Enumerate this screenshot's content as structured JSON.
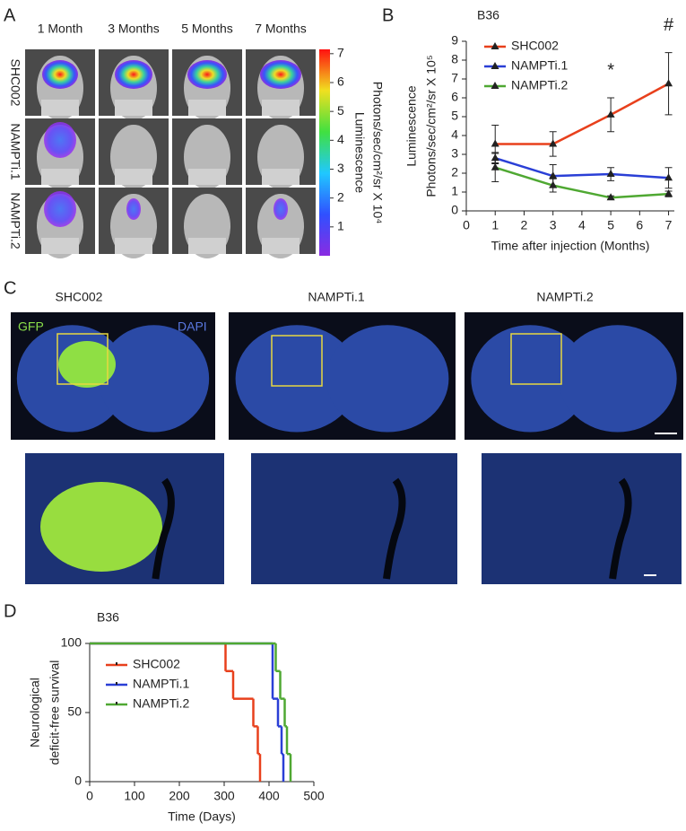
{
  "panel_labels": [
    "A",
    "B",
    "C",
    "D"
  ],
  "panel_a": {
    "columns": [
      "1 Month",
      "3 Months",
      "5 Months",
      "7 Months"
    ],
    "rows": [
      "SHC002",
      "NAMPTi.1",
      "NAMPTi.2"
    ],
    "colorbar": {
      "label": [
        "Luminescence",
        "Photons/sec/cm²/sr X 10⁴"
      ],
      "lim": [
        0,
        7.15
      ],
      "ticks": [
        1,
        2,
        3,
        4,
        5,
        6,
        7
      ]
    }
  },
  "panel_c": {
    "columns": [
      "SHC002",
      "NAMPTi.1",
      "NAMPTi.2"
    ],
    "channels": [
      "GFP",
      "DAPI"
    ]
  },
  "chart_data": [
    {
      "type": "line",
      "title": "B36",
      "xlabel": "Time after injection (Months)",
      "ylabel": [
        "Luminescence",
        "Photons/sec/cm²/sr X 10⁵"
      ],
      "x": [
        1,
        3,
        5,
        7
      ],
      "series": [
        {
          "name": "SHC002",
          "color": "#e8401c",
          "values": [
            3.55,
            3.55,
            5.1,
            6.75
          ],
          "errors": [
            1.0,
            0.65,
            0.9,
            1.65
          ]
        },
        {
          "name": "NAMPTi.1",
          "color": "#2a3fd6",
          "values": [
            2.8,
            1.85,
            1.95,
            1.75
          ],
          "errors": [
            0.3,
            0.6,
            0.35,
            0.55
          ]
        },
        {
          "name": "NAMPTi.2",
          "color": "#4fa832",
          "values": [
            2.3,
            1.35,
            0.7,
            0.9
          ],
          "errors": [
            0.75,
            0.35,
            0.1,
            0.15
          ]
        }
      ],
      "annotations": [
        {
          "x": 5,
          "text": "*"
        },
        {
          "x": 7,
          "text": "#"
        }
      ],
      "xlim": [
        0,
        7.2
      ],
      "xticks": [
        0,
        1,
        2,
        3,
        4,
        5,
        6,
        7
      ],
      "ylim": [
        0,
        9
      ],
      "yticks": [
        0,
        1,
        2,
        3,
        4,
        5,
        6,
        7,
        8,
        9
      ],
      "legend": "upper left"
    },
    {
      "type": "step",
      "title": "B36",
      "xlabel": "Time (Days)",
      "ylabel": [
        "Neurological",
        "deficit-free survival"
      ],
      "series": [
        {
          "name": "SHC002",
          "color": "#e8401c",
          "x": [
            0,
            303,
            320,
            365,
            375,
            380
          ],
          "values": [
            100,
            80,
            60,
            40,
            20,
            0
          ]
        },
        {
          "name": "NAMPTi.1",
          "color": "#2a3fd6",
          "x": [
            0,
            408,
            420,
            428,
            432
          ],
          "values": [
            100,
            60,
            40,
            20,
            0
          ]
        },
        {
          "name": "NAMPTi.2",
          "color": "#4fa832",
          "x": [
            0,
            415,
            425,
            435,
            440,
            448
          ],
          "values": [
            100,
            80,
            60,
            40,
            20,
            0
          ]
        }
      ],
      "xlim": [
        0,
        500
      ],
      "xticks": [
        0,
        100,
        200,
        300,
        400,
        500
      ],
      "ylim": [
        0,
        100
      ],
      "yticks": [
        0,
        50,
        100
      ],
      "legend": "upper left"
    }
  ]
}
